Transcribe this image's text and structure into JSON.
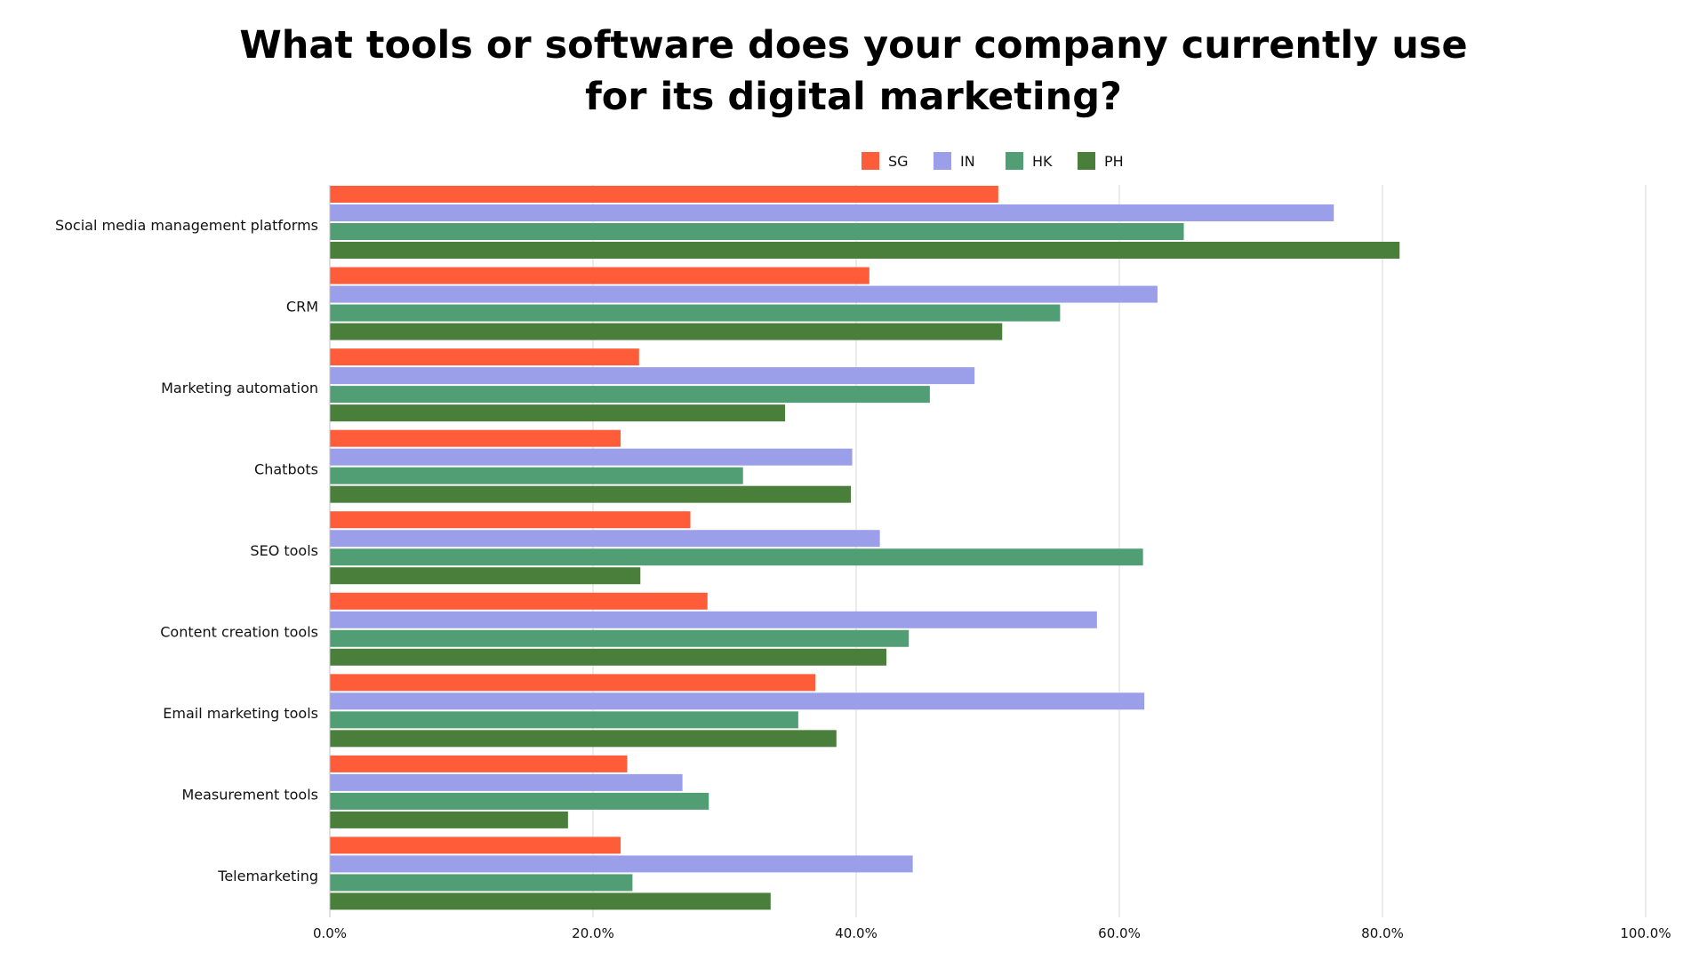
{
  "chart_data": {
    "type": "bar",
    "orientation": "horizontal",
    "title": "What tools or software does your company currently use for its digital marketing?",
    "categories": [
      "Social media management platforms",
      "CRM",
      "Marketing automation",
      "Chatbots",
      "SEO tools",
      "Content creation tools",
      "Email marketing tools",
      "Measurement tools",
      "Telemarketing"
    ],
    "series": [
      {
        "name": "SG",
        "color": "#FF5C39",
        "values": [
          50.8,
          41.0,
          23.5,
          22.1,
          27.4,
          28.7,
          36.9,
          22.6,
          22.1
        ]
      },
      {
        "name": "IN",
        "color": "#9B9EE8",
        "values": [
          76.3,
          62.9,
          49.0,
          39.7,
          41.8,
          58.3,
          61.9,
          26.8,
          44.3
        ]
      },
      {
        "name": "HK",
        "color": "#519E75",
        "values": [
          64.9,
          55.5,
          45.6,
          31.4,
          61.8,
          44.0,
          35.6,
          28.8,
          23.0
        ]
      },
      {
        "name": "PH",
        "color": "#4A7F3B",
        "values": [
          81.3,
          51.1,
          34.6,
          39.6,
          23.6,
          42.3,
          38.5,
          18.1,
          33.5
        ]
      }
    ],
    "xlim": [
      0,
      100
    ],
    "xticks": [
      "0.0%",
      "20.0%",
      "40.0%",
      "60.0%",
      "80.0%",
      "100.0%"
    ],
    "grid": true,
    "legend_position": "top-center"
  }
}
